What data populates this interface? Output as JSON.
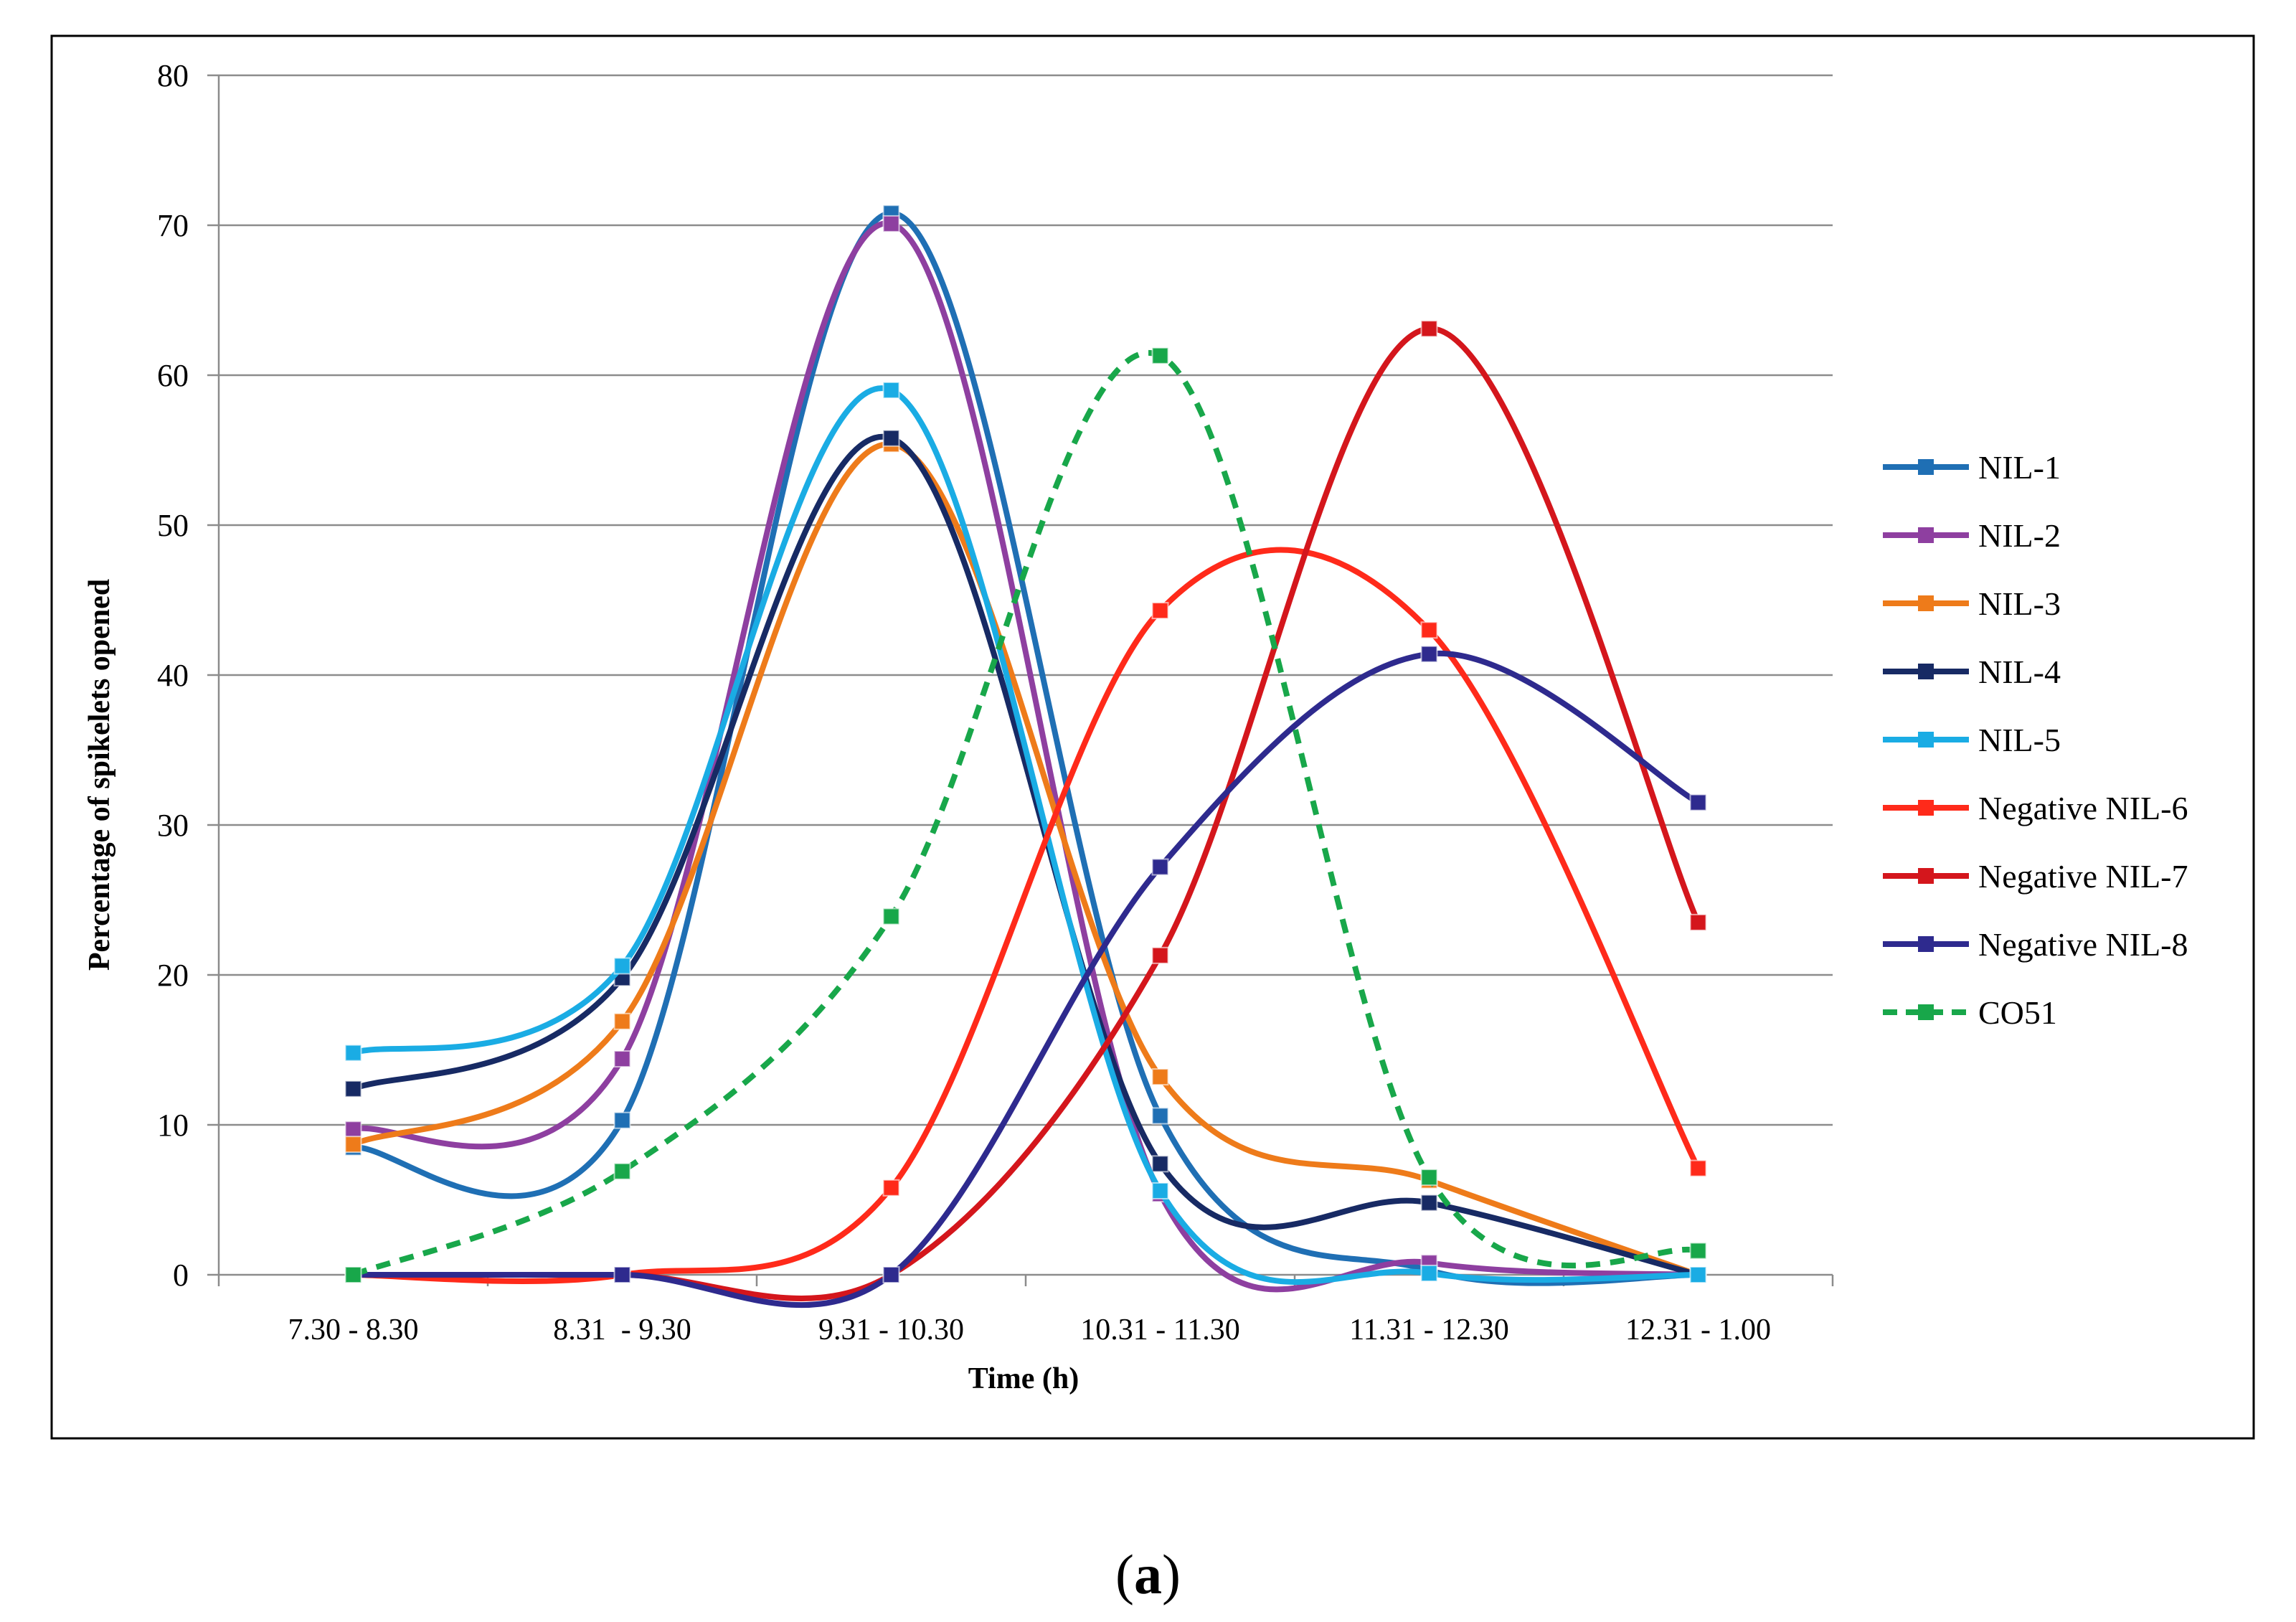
{
  "chart_data": {
    "type": "line",
    "title": "",
    "xlabel": "Time (h)",
    "ylabel": "Percentage of spikelets opened",
    "ylim": [
      0,
      80
    ],
    "yticks": [
      0,
      10,
      20,
      30,
      40,
      50,
      60,
      70,
      80
    ],
    "grid": true,
    "legend_position": "right",
    "categories": [
      "7.30 - 8.30",
      "8.31  - 9.30",
      "9.31 - 10.30",
      "10.31 - 11.30",
      "11.31 - 12.30",
      "12.31 - 1.00"
    ],
    "series": [
      {
        "name": "NIL-1",
        "color": "#1f6fb4",
        "dashed": false,
        "values": [
          8.5,
          10.3,
          70.8,
          10.6,
          0.3,
          0.0
        ]
      },
      {
        "name": "NIL-2",
        "color": "#8e3fa0",
        "dashed": false,
        "values": [
          9.7,
          14.4,
          70.1,
          5.4,
          0.8,
          0.0
        ]
      },
      {
        "name": "NIL-3",
        "color": "#ee7b1a",
        "dashed": false,
        "values": [
          8.7,
          16.9,
          55.4,
          13.2,
          6.3,
          0.0
        ]
      },
      {
        "name": "NIL-4",
        "color": "#172a64",
        "dashed": false,
        "values": [
          12.4,
          19.8,
          55.8,
          7.4,
          4.8,
          0.0
        ]
      },
      {
        "name": "NIL-5",
        "color": "#1aace4",
        "dashed": false,
        "values": [
          14.8,
          20.6,
          59.0,
          5.6,
          0.1,
          0.0
        ]
      },
      {
        "name": "Negative NIL-6",
        "color": "#ff2a1a",
        "dashed": false,
        "values": [
          0.0,
          0.0,
          5.8,
          44.3,
          43.0,
          7.1
        ]
      },
      {
        "name": "Negative NIL-7",
        "color": "#d4161c",
        "dashed": false,
        "values": [
          0.0,
          0.0,
          0.0,
          21.3,
          63.1,
          23.5
        ]
      },
      {
        "name": "Negative NIL-8",
        "color": "#2e2a8e",
        "dashed": false,
        "values": [
          0.0,
          0.0,
          0.0,
          27.2,
          41.4,
          31.5
        ]
      },
      {
        "name": "CO51",
        "color": "#18a74a",
        "dashed": true,
        "values": [
          0.0,
          6.9,
          23.9,
          61.3,
          6.5,
          1.6
        ]
      }
    ]
  },
  "caption": {
    "open": "(",
    "letter": "a",
    "close": ")"
  }
}
